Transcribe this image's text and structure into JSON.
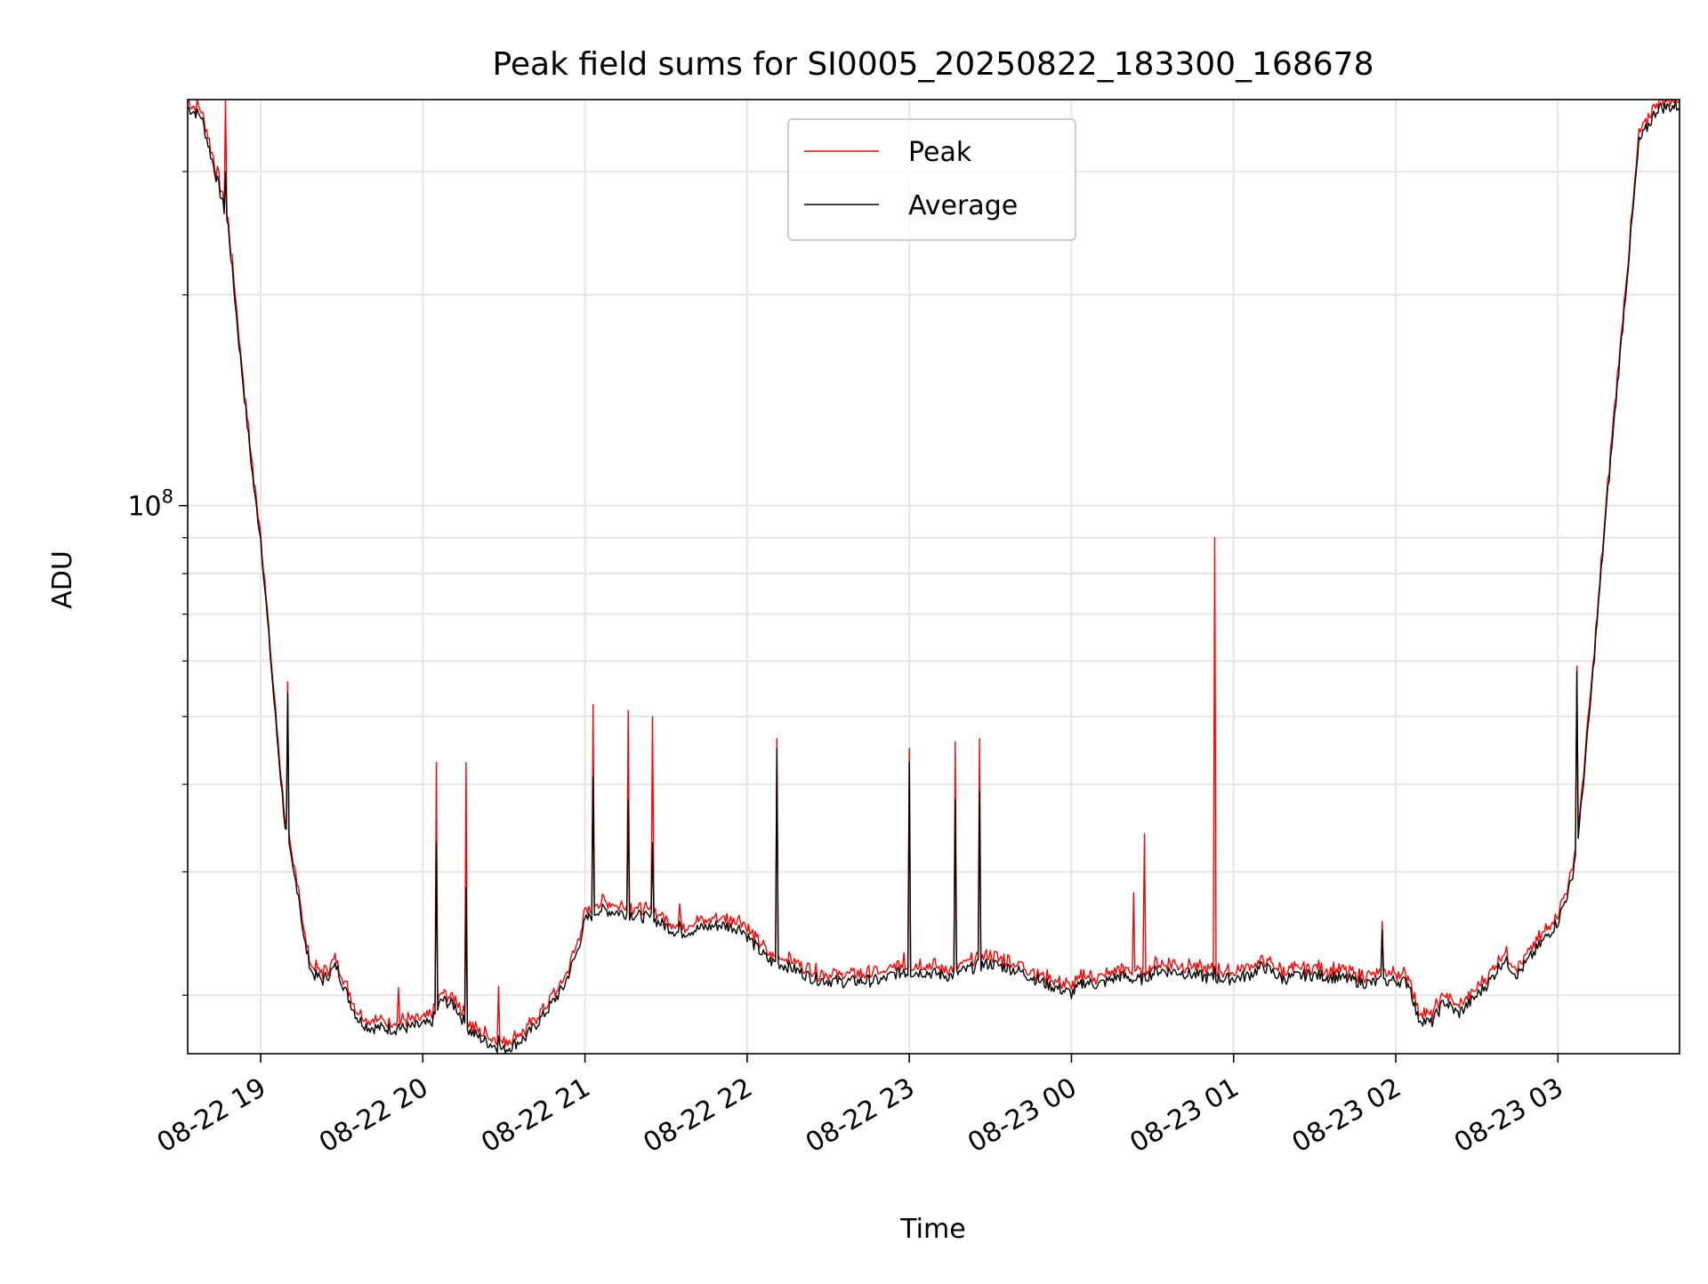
{
  "chart_data": {
    "type": "line",
    "title": "Peak field sums for SI0005_20250822_183300_168678",
    "xlabel": "Time",
    "ylabel": "ADU",
    "y_scale": "log",
    "ylim": [
      16500000,
      380000000
    ],
    "xlim": [
      "2025-08-22 18:33",
      "2025-08-23 03:45"
    ],
    "grid": true,
    "legend_position": "top-center",
    "y_major_ticks": [
      {
        "value": 100000000,
        "base": "10",
        "exp": "8"
      }
    ],
    "y_minor_ticks": [
      20000000,
      30000000,
      40000000,
      50000000,
      60000000,
      70000000,
      80000000,
      90000000,
      200000000,
      300000000
    ],
    "x_ticks": [
      {
        "value": "2025-08-22 19:00",
        "label": "08-22 19"
      },
      {
        "value": "2025-08-22 20:00",
        "label": "08-22 20"
      },
      {
        "value": "2025-08-22 21:00",
        "label": "08-22 21"
      },
      {
        "value": "2025-08-22 22:00",
        "label": "08-22 22"
      },
      {
        "value": "2025-08-22 23:00",
        "label": "08-22 23"
      },
      {
        "value": "2025-08-23 00:00",
        "label": "08-23 00"
      },
      {
        "value": "2025-08-23 01:00",
        "label": "08-23 01"
      },
      {
        "value": "2025-08-23 02:00",
        "label": "08-23 02"
      },
      {
        "value": "2025-08-23 03:00",
        "label": "08-23 03"
      }
    ],
    "series": [
      {
        "name": "Peak",
        "color": "#ff0000"
      },
      {
        "name": "Average",
        "color": "#000000"
      }
    ],
    "average_baseline": [
      [
        "2025-08-22 18:33",
        370000000
      ],
      [
        "2025-08-22 18:38",
        360000000
      ],
      [
        "2025-08-22 18:45",
        280000000
      ],
      [
        "2025-08-22 18:48",
        250000000
      ],
      [
        "2025-08-22 18:52",
        170000000
      ],
      [
        "2025-08-22 18:56",
        120000000
      ],
      [
        "2025-08-22 18:58",
        102000000
      ],
      [
        "2025-08-22 19:00",
        90000000
      ],
      [
        "2025-08-22 19:03",
        65000000
      ],
      [
        "2025-08-22 19:06",
        47000000
      ],
      [
        "2025-08-22 19:09",
        35000000
      ],
      [
        "2025-08-22 19:12",
        30000000
      ],
      [
        "2025-08-22 19:14",
        28000000
      ],
      [
        "2025-08-22 19:16",
        24000000
      ],
      [
        "2025-08-22 19:19",
        21500000
      ],
      [
        "2025-08-22 19:23",
        21000000
      ],
      [
        "2025-08-22 19:28",
        22000000
      ],
      [
        "2025-08-22 19:32",
        20000000
      ],
      [
        "2025-08-22 19:36",
        18500000
      ],
      [
        "2025-08-22 19:40",
        18000000
      ],
      [
        "2025-08-22 19:50",
        17900000
      ],
      [
        "2025-08-22 19:56",
        18000000
      ],
      [
        "2025-08-22 20:03",
        18200000
      ],
      [
        "2025-08-22 20:07",
        19700000
      ],
      [
        "2025-08-22 20:12",
        19300000
      ],
      [
        "2025-08-22 20:17",
        17800000
      ],
      [
        "2025-08-22 20:23",
        17200000
      ],
      [
        "2025-08-22 20:30",
        16700000
      ],
      [
        "2025-08-22 20:38",
        17400000
      ],
      [
        "2025-08-22 20:45",
        18800000
      ],
      [
        "2025-08-22 20:52",
        20500000
      ],
      [
        "2025-08-22 20:57",
        23000000
      ],
      [
        "2025-08-22 21:00",
        25500000
      ],
      [
        "2025-08-22 21:05",
        26500000
      ],
      [
        "2025-08-22 21:15",
        26200000
      ],
      [
        "2025-08-22 21:25",
        25700000
      ],
      [
        "2025-08-22 21:35",
        24500000
      ],
      [
        "2025-08-22 21:40",
        24800000
      ],
      [
        "2025-08-22 21:50",
        25200000
      ],
      [
        "2025-08-22 21:58",
        24900000
      ],
      [
        "2025-08-22 22:03",
        23500000
      ],
      [
        "2025-08-22 22:08",
        22400000
      ],
      [
        "2025-08-22 22:15",
        22000000
      ],
      [
        "2025-08-22 22:25",
        21100000
      ],
      [
        "2025-08-22 22:35",
        20900000
      ],
      [
        "2025-08-22 22:50",
        21000000
      ],
      [
        "2025-08-22 22:55",
        21500000
      ],
      [
        "2025-08-22 23:05",
        21600000
      ],
      [
        "2025-08-22 23:15",
        21300000
      ],
      [
        "2025-08-22 23:25",
        22000000
      ],
      [
        "2025-08-22 23:30",
        22200000
      ],
      [
        "2025-08-22 23:40",
        21700000
      ],
      [
        "2025-08-22 23:50",
        20800000
      ],
      [
        "2025-08-23 00:00",
        20100000
      ],
      [
        "2025-08-23 00:05",
        20900000
      ],
      [
        "2025-08-23 00:10",
        20700000
      ],
      [
        "2025-08-23 00:18",
        21300000
      ],
      [
        "2025-08-23 00:25",
        21000000
      ],
      [
        "2025-08-23 00:32",
        21700000
      ],
      [
        "2025-08-23 00:40",
        21600000
      ],
      [
        "2025-08-23 00:50",
        21200000
      ],
      [
        "2025-08-23 00:58",
        21100000
      ],
      [
        "2025-08-23 01:05",
        21300000
      ],
      [
        "2025-08-23 01:11",
        22000000
      ],
      [
        "2025-08-23 01:18",
        21100000
      ],
      [
        "2025-08-23 01:28",
        21400000
      ],
      [
        "2025-08-23 01:38",
        21200000
      ],
      [
        "2025-08-23 01:50",
        20800000
      ],
      [
        "2025-08-23 02:00",
        21000000
      ],
      [
        "2025-08-23 02:05",
        20800000
      ],
      [
        "2025-08-23 02:08",
        18600000
      ],
      [
        "2025-08-23 02:13",
        18200000
      ],
      [
        "2025-08-23 02:18",
        19600000
      ],
      [
        "2025-08-23 02:23",
        18800000
      ],
      [
        "2025-08-23 02:28",
        19600000
      ],
      [
        "2025-08-23 02:35",
        21000000
      ],
      [
        "2025-08-23 02:40",
        22500000
      ],
      [
        "2025-08-23 02:45",
        21400000
      ],
      [
        "2025-08-23 02:52",
        23200000
      ],
      [
        "2025-08-23 03:00",
        25500000
      ],
      [
        "2025-08-23 03:05",
        29000000
      ],
      [
        "2025-08-23 03:08",
        35000000
      ],
      [
        "2025-08-23 03:12",
        52000000
      ],
      [
        "2025-08-23 03:18",
        100000000
      ],
      [
        "2025-08-23 03:25",
        200000000
      ],
      [
        "2025-08-23 03:30",
        330000000
      ],
      [
        "2025-08-23 03:37",
        370000000
      ],
      [
        "2025-08-23 03:45",
        372000000
      ]
    ],
    "peak_spikes": [
      {
        "t": "2025-08-22 18:47",
        "peak": 380000000,
        "average": 300000000
      },
      {
        "t": "2025-08-22 19:10",
        "peak": 56000000,
        "average": 54000000
      },
      {
        "t": "2025-08-22 19:51",
        "peak": 20500000,
        "average": 18200000
      },
      {
        "t": "2025-08-22 20:05",
        "peak": 43000000,
        "average": 33000000
      },
      {
        "t": "2025-08-22 20:16",
        "peak": 43000000,
        "average": 28500000
      },
      {
        "t": "2025-08-22 20:28",
        "peak": 20600000,
        "average": 17500000
      },
      {
        "t": "2025-08-22 21:03",
        "peak": 52000000,
        "average": 41000000
      },
      {
        "t": "2025-08-22 21:16",
        "peak": 51000000,
        "average": 38000000
      },
      {
        "t": "2025-08-22 21:25",
        "peak": 50000000,
        "average": 33000000
      },
      {
        "t": "2025-08-22 21:35",
        "peak": 27000000,
        "average": 25500000
      },
      {
        "t": "2025-08-22 22:11",
        "peak": 46500000,
        "average": 45000000
      },
      {
        "t": "2025-08-22 22:58",
        "peak": 23000000,
        "average": 21800000
      },
      {
        "t": "2025-08-22 23:00",
        "peak": 45000000,
        "average": 43000000
      },
      {
        "t": "2025-08-22 23:17",
        "peak": 46000000,
        "average": 38000000
      },
      {
        "t": "2025-08-22 23:26",
        "peak": 46500000,
        "average": 39000000
      },
      {
        "t": "2025-08-23 00:23",
        "peak": 28000000,
        "average": 21000000
      },
      {
        "t": "2025-08-23 00:27",
        "peak": 34000000,
        "average": 21500000
      },
      {
        "t": "2025-08-23 00:53",
        "peak": 90000000,
        "average": 22000000
      },
      {
        "t": "2025-08-23 01:55",
        "peak": 25500000,
        "average": 24800000
      },
      {
        "t": "2025-08-23 03:07",
        "peak": 59000000,
        "average": 58000000
      }
    ]
  }
}
